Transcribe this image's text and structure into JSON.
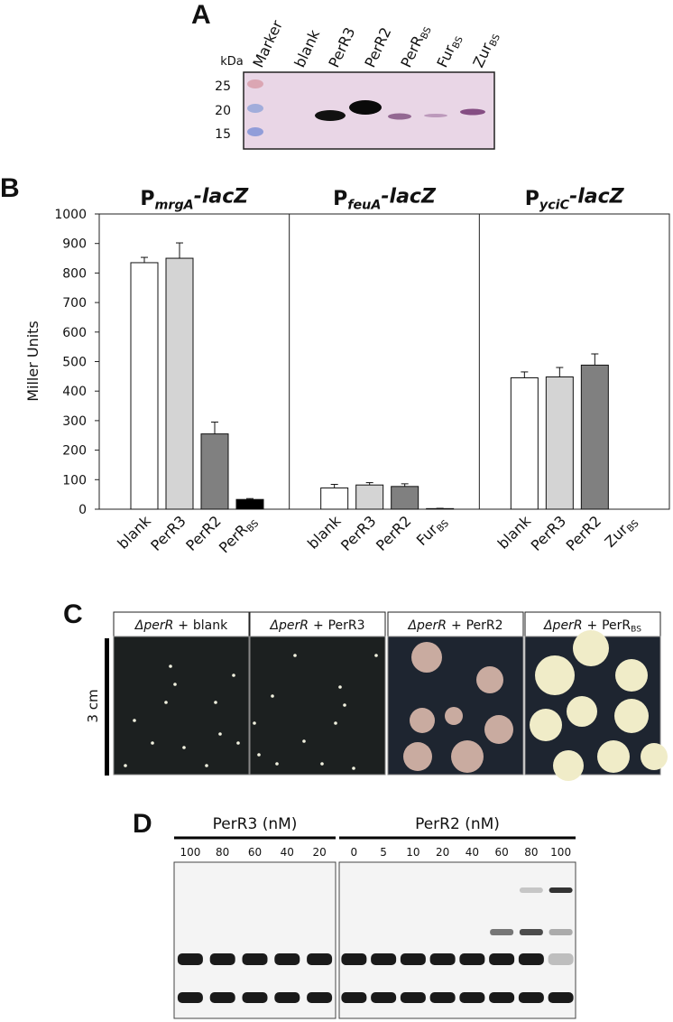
{
  "panel_a": {
    "label": "A",
    "unit": "kDa",
    "lanes": [
      "Marker",
      "blank",
      "PerR3",
      "PerR2",
      {
        "main": "PerR",
        "sub": "BS"
      },
      {
        "main": "Fur",
        "sub": "BS"
      },
      {
        "main": "Zur",
        "sub": "BS"
      }
    ],
    "markers": [
      25,
      20,
      15
    ]
  },
  "chart_data": {
    "type": "bar",
    "panel_label": "B",
    "ylabel": "Miller Units",
    "ylim": [
      0,
      1000
    ],
    "yticks": [
      0,
      100,
      200,
      300,
      400,
      500,
      600,
      700,
      800,
      900,
      1000
    ],
    "colors": [
      "#ffffff",
      "#d4d4d4",
      "#808080",
      "#000000"
    ],
    "groups": [
      {
        "title": {
          "main": "P",
          "sub": "mrgA",
          "suffix": "-lacZ"
        },
        "categories": [
          "blank",
          "PerR3",
          "PerR2",
          {
            "main": "PerR",
            "sub": "BS"
          }
        ],
        "values": [
          835,
          850,
          255,
          33
        ],
        "errors": [
          18,
          52,
          40,
          3
        ]
      },
      {
        "title": {
          "main": "P",
          "sub": "feuA",
          "suffix": "-lacZ"
        },
        "categories": [
          "blank",
          "PerR3",
          "PerR2",
          {
            "main": "Fur",
            "sub": "BS"
          }
        ],
        "values": [
          72,
          82,
          77,
          2
        ],
        "errors": [
          12,
          8,
          9,
          1
        ]
      },
      {
        "title": {
          "main": "P",
          "sub": "yciC",
          "suffix": "-lacZ"
        },
        "categories": [
          "blank",
          "PerR3",
          "PerR2",
          {
            "main": "Zur",
            "sub": "BS"
          }
        ],
        "values": [
          445,
          448,
          488,
          0
        ],
        "errors": [
          20,
          32,
          38,
          0
        ]
      }
    ]
  },
  "panel_c": {
    "label": "C",
    "scale_label": "3 cm",
    "plates": [
      {
        "strain": "ΔperR",
        "plus": "+",
        "protein": "blank"
      },
      {
        "strain": "ΔperR",
        "plus": "+",
        "protein": "PerR3"
      },
      {
        "strain": "ΔperR",
        "plus": "+",
        "protein": "PerR2"
      },
      {
        "strain": "ΔperR",
        "plus": "+",
        "protein": {
          "main": "PerR",
          "sub": "BS"
        }
      }
    ]
  },
  "panel_d": {
    "label": "D",
    "groups": [
      {
        "title": "PerR3 (nM)",
        "lanes": [
          100,
          80,
          60,
          40,
          20
        ]
      },
      {
        "title": "PerR2 (nM)",
        "lanes": [
          0,
          5,
          10,
          20,
          40,
          60,
          80,
          100
        ]
      }
    ]
  }
}
